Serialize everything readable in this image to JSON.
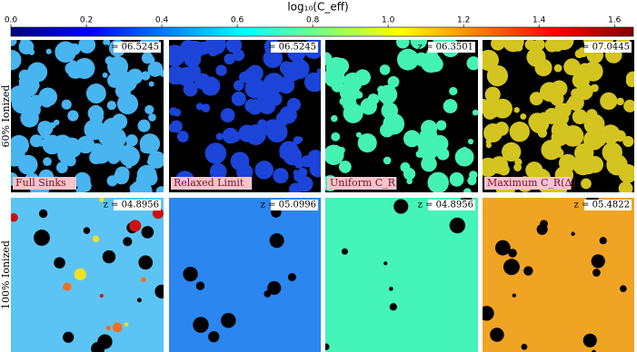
{
  "chart_data": {
    "type": "image-grid",
    "colorbar_label": "log₁₀(C_eff)",
    "clim": [
      0,
      1.65
    ],
    "colorbar_ticks": [
      {
        "value": 0,
        "label": "0.0"
      },
      0.2,
      0.4,
      0.6,
      0.8,
      {
        "value": 1,
        "label": "1.0"
      },
      1.2,
      1.4,
      1.6
    ],
    "colormap": [
      "#00007f",
      "#0000ff",
      "#007fff",
      "#00ffff",
      "#7fff7f",
      "#ffff00",
      "#ff7f00",
      "#ff0000",
      "#7f0000"
    ],
    "rows": [
      {
        "label": "60% Ionized",
        "panels": [
          {
            "label": "Full Sinks",
            "z": "z = 06.5245",
            "color": "#48b4f0"
          },
          {
            "label": "Relaxed Limit",
            "z": "z = 06.5245",
            "color": "#1c44d8"
          },
          {
            "label": "Uniform C_R",
            "z": "z = 06.3501",
            "color": "#44f2b4"
          },
          {
            "label": "Maximum C_R(Δ)",
            "z": "z = 07.0445",
            "color": "#d4c420"
          }
        ]
      },
      {
        "label": "100% Ionized",
        "panels": [
          {
            "z": "z = 04.8956",
            "color": "#5cc4f4"
          },
          {
            "z": "z = 05.0996",
            "color": "#2c86f0"
          },
          {
            "z": "z = 04.8956",
            "color": "#44f4b8"
          },
          {
            "z": "z = 05.4822",
            "color": "#f0a424"
          }
        ]
      }
    ]
  }
}
